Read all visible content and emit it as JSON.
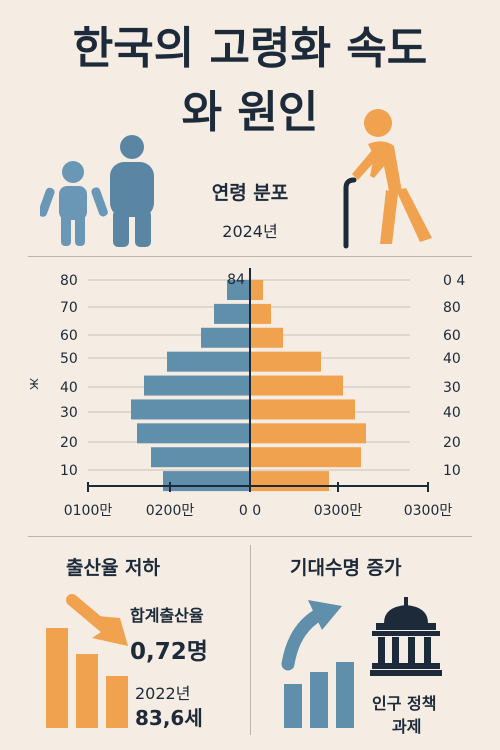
{
  "title_line1": "한국의 고령화 속도",
  "title_line2": "와 원인",
  "section_distribution": "연령 분포",
  "year": "2024년",
  "pyramid": {
    "top_label": "84",
    "left_ages": [
      "80",
      "70",
      "60",
      "50",
      "40",
      "30",
      "20",
      "10"
    ],
    "right_ages": [
      "0 4",
      "80",
      "60",
      "40",
      "30",
      "40",
      "20",
      "10"
    ],
    "side_label": "Ж",
    "bottom_ticks": [
      "0100만",
      "0200만",
      "0 0",
      "0300만",
      "0300만"
    ],
    "male_values": [
      22,
      35,
      48,
      82,
      105,
      118,
      112,
      98,
      86
    ],
    "female_values": [
      12,
      20,
      32,
      70,
      92,
      104,
      115,
      110,
      78
    ],
    "colors": {
      "male": "#5f8fab",
      "female": "#f0a24f",
      "axis": "#1d2a3a"
    }
  },
  "birth_section": {
    "title": "출산율 저하",
    "tfr_label": "합계출산율",
    "tfr_value": "0,72명",
    "year": "2022년",
    "value2": "83,6세"
  },
  "life_section": {
    "title": "기대수명 증가",
    "policy_line1": "인구 정책",
    "policy_line2": "과제"
  },
  "icons": [
    "child-icon",
    "adult-icon",
    "elderly-with-cane-icon",
    "down-arrow-icon",
    "up-arrow-icon",
    "government-building-icon"
  ]
}
